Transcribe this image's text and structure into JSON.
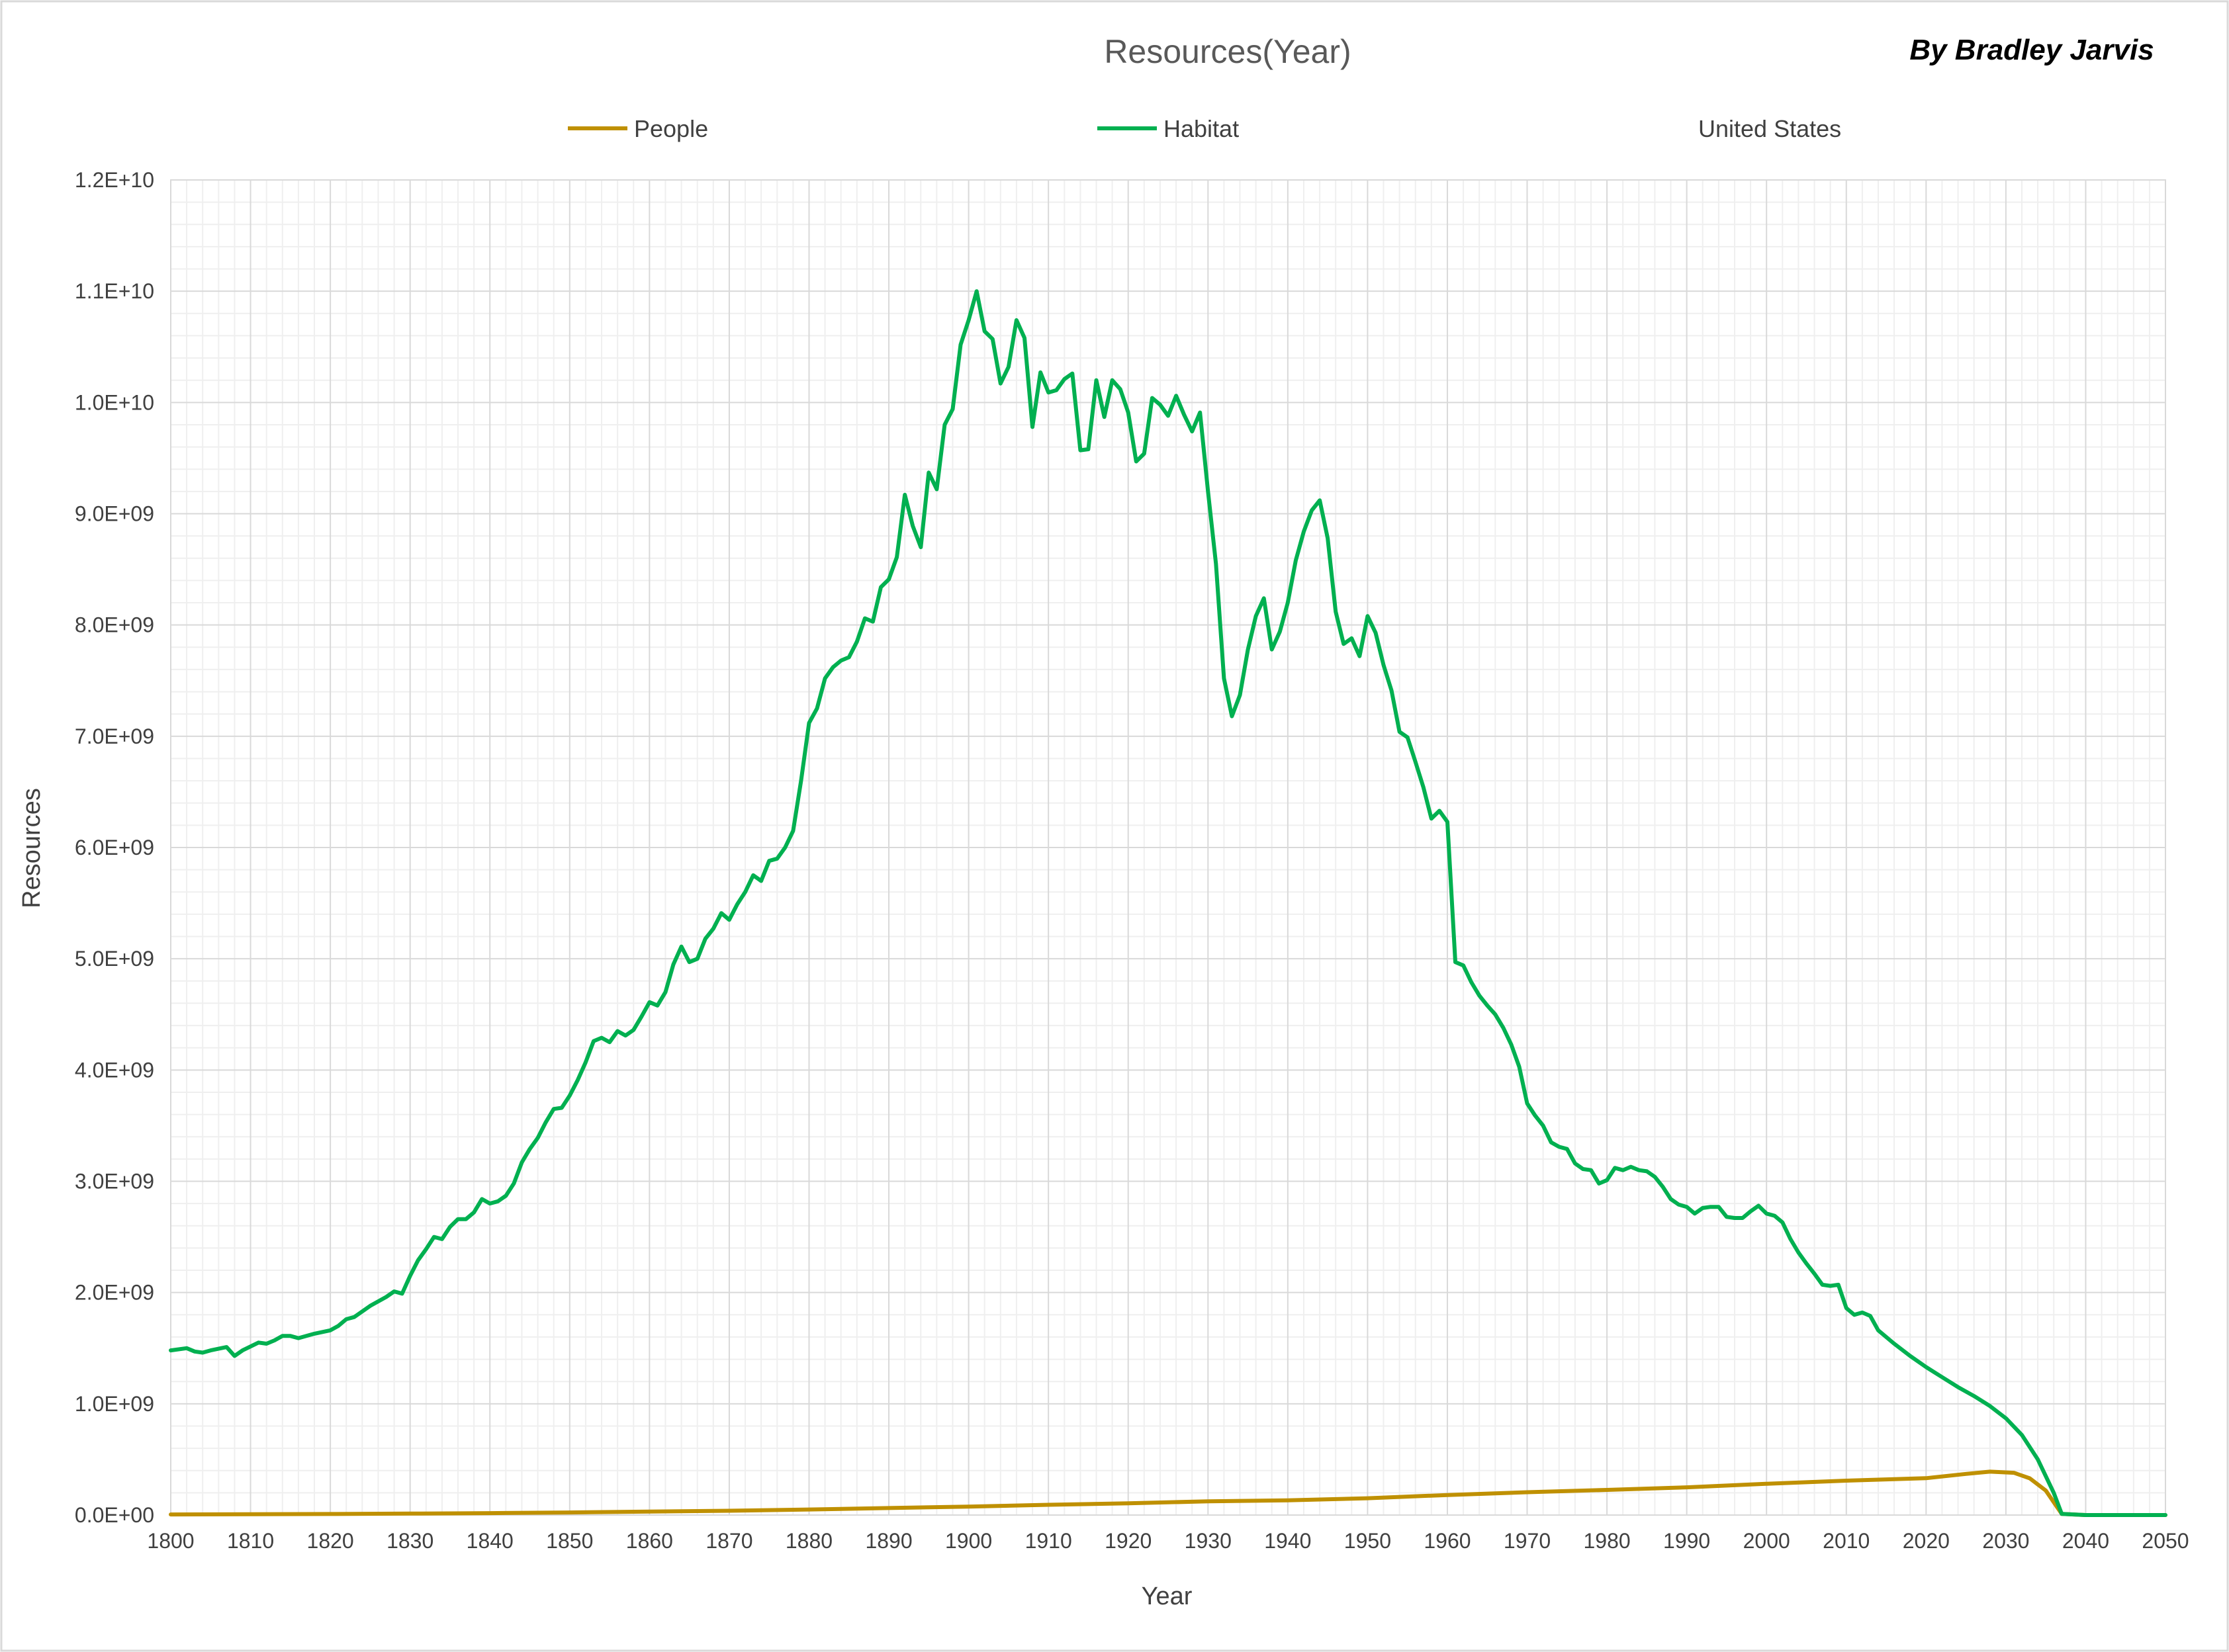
{
  "chart_data": {
    "type": "line",
    "title": "Resources(Year)",
    "author": "By Bradley Jarvis",
    "xlabel": "Year",
    "ylabel": "Resources",
    "xlim": [
      1800,
      2050
    ],
    "ylim": [
      0,
      12000000000
    ],
    "x_ticks": [
      1800,
      1810,
      1820,
      1830,
      1840,
      1850,
      1860,
      1870,
      1880,
      1890,
      1900,
      1910,
      1920,
      1930,
      1940,
      1950,
      1960,
      1970,
      1980,
      1990,
      2000,
      2010,
      2020,
      2030,
      2040,
      2050
    ],
    "x_tick_labels": [
      "1800",
      "1810",
      "1820",
      "1830",
      "1840",
      "1850",
      "1860",
      "1870",
      "1880",
      "1890",
      "1900",
      "1910",
      "1920",
      "1930",
      "1940",
      "1950",
      "1960",
      "1970",
      "1980",
      "1990",
      "2000",
      "2010",
      "2020",
      "2030",
      "2040",
      "2050"
    ],
    "y_ticks": [
      0,
      1000000000,
      2000000000,
      3000000000,
      4000000000,
      5000000000,
      6000000000,
      7000000000,
      8000000000,
      9000000000,
      10000000000,
      11000000000,
      12000000000
    ],
    "y_tick_labels": [
      "0.0E+00",
      "1.0E+09",
      "2.0E+09",
      "3.0E+09",
      "4.0E+09",
      "5.0E+09",
      "6.0E+09",
      "7.0E+09",
      "8.0E+09",
      "9.0E+09",
      "1.0E+10",
      "1.1E+10",
      "1.2E+10"
    ],
    "grid": true,
    "minor_grid": true,
    "legend_position": "top",
    "legend_entries": [
      {
        "label": "People",
        "color": "#bf9000"
      },
      {
        "label": "Habitat",
        "color": "#00b050"
      },
      {
        "label": "United States",
        "color": null
      }
    ],
    "series": [
      {
        "name": "People",
        "color": "#bf9000",
        "points": [
          [
            1800,
            5300000
          ],
          [
            1810,
            7200000
          ],
          [
            1820,
            9600000
          ],
          [
            1830,
            12900000
          ],
          [
            1840,
            17100000
          ],
          [
            1850,
            23200000
          ],
          [
            1860,
            31400000
          ],
          [
            1870,
            38600000
          ],
          [
            1880,
            50200000
          ],
          [
            1890,
            63000000
          ],
          [
            1900,
            76000000
          ],
          [
            1910,
            92000000
          ],
          [
            1920,
            106000000
          ],
          [
            1930,
            123000000
          ],
          [
            1940,
            132000000
          ],
          [
            1950,
            151000000
          ],
          [
            1960,
            180000000
          ],
          [
            1970,
            205000000
          ],
          [
            1980,
            226000000
          ],
          [
            1990,
            249000000
          ],
          [
            2000,
            281000000
          ],
          [
            2010,
            309000000
          ],
          [
            2020,
            331000000
          ],
          [
            2025,
            370000000
          ],
          [
            2028,
            390000000
          ],
          [
            2031,
            380000000
          ],
          [
            2033,
            330000000
          ],
          [
            2035,
            220000000
          ],
          [
            2037,
            10000000
          ],
          [
            2040,
            0
          ],
          [
            2050,
            0
          ]
        ]
      },
      {
        "name": "Habitat",
        "color": "#00b050",
        "points": [
          [
            1800,
            1480000000
          ],
          [
            1802,
            1500000000
          ],
          [
            1803,
            1470000000
          ],
          [
            1804,
            1460000000
          ],
          [
            1805,
            1480000000
          ],
          [
            1807,
            1510000000
          ],
          [
            1808,
            1430000000
          ],
          [
            1809,
            1480000000
          ],
          [
            1811,
            1550000000
          ],
          [
            1812,
            1540000000
          ],
          [
            1813,
            1570000000
          ],
          [
            1814,
            1610000000
          ],
          [
            1815,
            1610000000
          ],
          [
            1816,
            1590000000
          ],
          [
            1818,
            1630000000
          ],
          [
            1820,
            1660000000
          ],
          [
            1821,
            1700000000
          ],
          [
            1822,
            1760000000
          ],
          [
            1823,
            1780000000
          ],
          [
            1825,
            1880000000
          ],
          [
            1827,
            1960000000
          ],
          [
            1828,
            2010000000
          ],
          [
            1829,
            1990000000
          ],
          [
            1830,
            2150000000
          ],
          [
            1831,
            2290000000
          ],
          [
            1832,
            2390000000
          ],
          [
            1833,
            2500000000
          ],
          [
            1834,
            2480000000
          ],
          [
            1835,
            2590000000
          ],
          [
            1836,
            2660000000
          ],
          [
            1837,
            2660000000
          ],
          [
            1838,
            2720000000
          ],
          [
            1839,
            2840000000
          ],
          [
            1840,
            2800000000
          ],
          [
            1841,
            2820000000
          ],
          [
            1842,
            2870000000
          ],
          [
            1843,
            2980000000
          ],
          [
            1844,
            3170000000
          ],
          [
            1845,
            3290000000
          ],
          [
            1846,
            3390000000
          ],
          [
            1847,
            3530000000
          ],
          [
            1848,
            3650000000
          ],
          [
            1849,
            3660000000
          ],
          [
            1850,
            3770000000
          ],
          [
            1851,
            3910000000
          ],
          [
            1852,
            4070000000
          ],
          [
            1853,
            4260000000
          ],
          [
            1854,
            4290000000
          ],
          [
            1855,
            4250000000
          ],
          [
            1856,
            4350000000
          ],
          [
            1857,
            4310000000
          ],
          [
            1858,
            4360000000
          ],
          [
            1859,
            4480000000
          ],
          [
            1860,
            4610000000
          ],
          [
            1861,
            4580000000
          ],
          [
            1862,
            4700000000
          ],
          [
            1863,
            4950000000
          ],
          [
            1864,
            5110000000
          ],
          [
            1865,
            4970000000
          ],
          [
            1866,
            5000000000
          ],
          [
            1867,
            5180000000
          ],
          [
            1868,
            5270000000
          ],
          [
            1869,
            5410000000
          ],
          [
            1870,
            5350000000
          ],
          [
            1871,
            5490000000
          ],
          [
            1872,
            5600000000
          ],
          [
            1873,
            5750000000
          ],
          [
            1874,
            5700000000
          ],
          [
            1875,
            5880000000
          ],
          [
            1876,
            5900000000
          ],
          [
            1877,
            6000000000
          ],
          [
            1878,
            6150000000
          ],
          [
            1879,
            6600000000
          ],
          [
            1880,
            7120000000
          ],
          [
            1881,
            7250000000
          ],
          [
            1882,
            7520000000
          ],
          [
            1883,
            7620000000
          ],
          [
            1884,
            7680000000
          ],
          [
            1885,
            7710000000
          ],
          [
            1886,
            7850000000
          ],
          [
            1887,
            8060000000
          ],
          [
            1888,
            8030000000
          ],
          [
            1889,
            8340000000
          ],
          [
            1890,
            8410000000
          ],
          [
            1891,
            8610000000
          ],
          [
            1892,
            9170000000
          ],
          [
            1893,
            8890000000
          ],
          [
            1894,
            8700000000
          ],
          [
            1895,
            9370000000
          ],
          [
            1896,
            9220000000
          ],
          [
            1897,
            9800000000
          ],
          [
            1898,
            9940000000
          ],
          [
            1899,
            10520000000
          ],
          [
            1900,
            10740000000
          ],
          [
            1901,
            11000000000
          ],
          [
            1902,
            10640000000
          ],
          [
            1903,
            10570000000
          ],
          [
            1904,
            10170000000
          ],
          [
            1905,
            10320000000
          ],
          [
            1906,
            10740000000
          ],
          [
            1907,
            10580000000
          ],
          [
            1908,
            9780000000
          ],
          [
            1909,
            10270000000
          ],
          [
            1910,
            10090000000
          ],
          [
            1911,
            10110000000
          ],
          [
            1912,
            10210000000
          ],
          [
            1913,
            10260000000
          ],
          [
            1914,
            9570000000
          ],
          [
            1915,
            9580000000
          ],
          [
            1916,
            10200000000
          ],
          [
            1917,
            9870000000
          ],
          [
            1918,
            10200000000
          ],
          [
            1919,
            10120000000
          ],
          [
            1920,
            9910000000
          ],
          [
            1921,
            9470000000
          ],
          [
            1922,
            9540000000
          ],
          [
            1923,
            10040000000
          ],
          [
            1924,
            9980000000
          ],
          [
            1925,
            9880000000
          ],
          [
            1926,
            10060000000
          ],
          [
            1927,
            9890000000
          ],
          [
            1928,
            9740000000
          ],
          [
            1929,
            9910000000
          ],
          [
            1930,
            9200000000
          ],
          [
            1931,
            8550000000
          ],
          [
            1932,
            7520000000
          ],
          [
            1933,
            7180000000
          ],
          [
            1934,
            7370000000
          ],
          [
            1935,
            7780000000
          ],
          [
            1936,
            8080000000
          ],
          [
            1937,
            8240000000
          ],
          [
            1938,
            7780000000
          ],
          [
            1939,
            7940000000
          ],
          [
            1940,
            8200000000
          ],
          [
            1941,
            8580000000
          ],
          [
            1942,
            8840000000
          ],
          [
            1943,
            9030000000
          ],
          [
            1944,
            9120000000
          ],
          [
            1945,
            8780000000
          ],
          [
            1946,
            8120000000
          ],
          [
            1947,
            7830000000
          ],
          [
            1948,
            7880000000
          ],
          [
            1949,
            7720000000
          ],
          [
            1950,
            8080000000
          ],
          [
            1951,
            7930000000
          ],
          [
            1952,
            7640000000
          ],
          [
            1953,
            7410000000
          ],
          [
            1954,
            7040000000
          ],
          [
            1955,
            6990000000
          ],
          [
            1956,
            6770000000
          ],
          [
            1957,
            6540000000
          ],
          [
            1958,
            6260000000
          ],
          [
            1959,
            6330000000
          ],
          [
            1960,
            6230000000
          ],
          [
            1961,
            4970000000
          ],
          [
            1962,
            4940000000
          ],
          [
            1963,
            4790000000
          ],
          [
            1964,
            4670000000
          ],
          [
            1965,
            4580000000
          ],
          [
            1966,
            4500000000
          ],
          [
            1967,
            4380000000
          ],
          [
            1968,
            4230000000
          ],
          [
            1969,
            4030000000
          ],
          [
            1970,
            3700000000
          ],
          [
            1971,
            3590000000
          ],
          [
            1972,
            3500000000
          ],
          [
            1973,
            3350000000
          ],
          [
            1974,
            3310000000
          ],
          [
            1975,
            3290000000
          ],
          [
            1976,
            3160000000
          ],
          [
            1977,
            3110000000
          ],
          [
            1978,
            3100000000
          ],
          [
            1979,
            2980000000
          ],
          [
            1980,
            3010000000
          ],
          [
            1981,
            3120000000
          ],
          [
            1982,
            3100000000
          ],
          [
            1983,
            3130000000
          ],
          [
            1984,
            3100000000
          ],
          [
            1985,
            3090000000
          ],
          [
            1986,
            3040000000
          ],
          [
            1987,
            2950000000
          ],
          [
            1988,
            2840000000
          ],
          [
            1989,
            2790000000
          ],
          [
            1990,
            2770000000
          ],
          [
            1991,
            2710000000
          ],
          [
            1992,
            2760000000
          ],
          [
            1993,
            2770000000
          ],
          [
            1994,
            2770000000
          ],
          [
            1995,
            2680000000
          ],
          [
            1996,
            2670000000
          ],
          [
            1997,
            2670000000
          ],
          [
            1998,
            2730000000
          ],
          [
            1999,
            2780000000
          ],
          [
            2000,
            2710000000
          ],
          [
            2001,
            2690000000
          ],
          [
            2002,
            2630000000
          ],
          [
            2003,
            2480000000
          ],
          [
            2004,
            2360000000
          ],
          [
            2005,
            2260000000
          ],
          [
            2006,
            2170000000
          ],
          [
            2007,
            2070000000
          ],
          [
            2008,
            2060000000
          ],
          [
            2009,
            2070000000
          ],
          [
            2010,
            1860000000
          ],
          [
            2011,
            1800000000
          ],
          [
            2012,
            1820000000
          ],
          [
            2013,
            1790000000
          ],
          [
            2014,
            1660000000
          ],
          [
            2016,
            1540000000
          ],
          [
            2018,
            1430000000
          ],
          [
            2020,
            1330000000
          ],
          [
            2022,
            1240000000
          ],
          [
            2024,
            1150000000
          ],
          [
            2026,
            1070000000
          ],
          [
            2028,
            980000000
          ],
          [
            2030,
            870000000
          ],
          [
            2032,
            720000000
          ],
          [
            2034,
            500000000
          ],
          [
            2036,
            200000000
          ],
          [
            2037,
            10000000
          ],
          [
            2040,
            0
          ],
          [
            2050,
            0
          ]
        ]
      }
    ]
  }
}
